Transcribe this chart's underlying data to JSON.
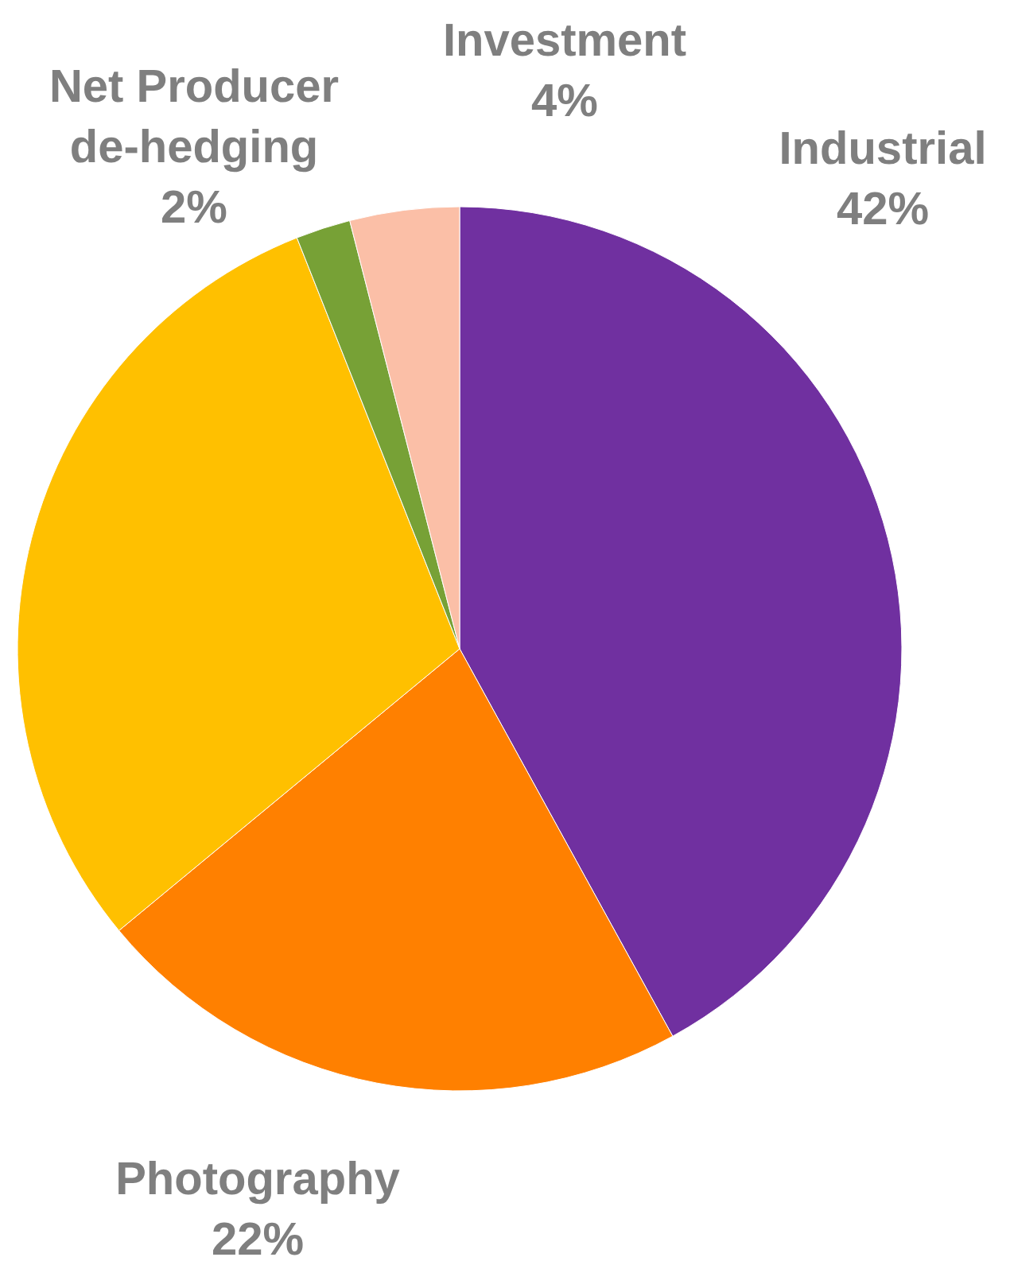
{
  "chart_data": {
    "type": "pie",
    "categories": [
      "Industrial",
      "Photography",
      null,
      "Net Producer de-hedging",
      "Investment"
    ],
    "values": [
      42,
      22,
      30,
      2,
      4
    ],
    "colors": [
      "#7030a0",
      "#ff8000",
      "#ffc000",
      "#77a136",
      "#fbbfa7"
    ],
    "value_labels": [
      "42%",
      "22%",
      null,
      "2%",
      "4%"
    ],
    "legend": false
  }
}
